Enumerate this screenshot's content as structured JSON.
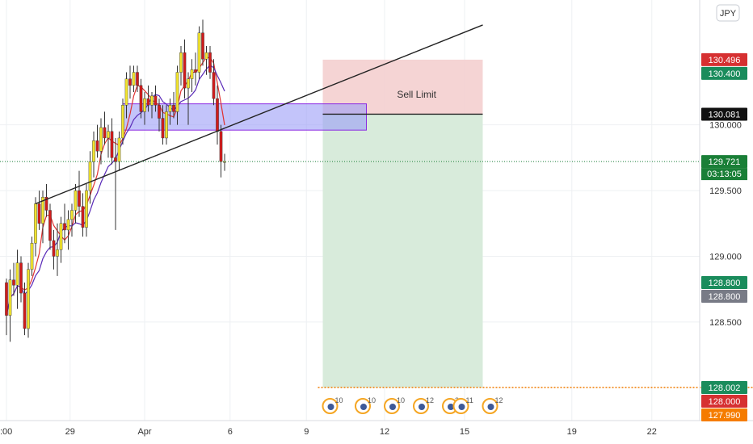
{
  "currency": "JPY",
  "countdown": "03:13:05",
  "trade_label": "Sell Limit",
  "colors": {
    "up": "#f2e42e",
    "down": "#d11c1c",
    "wick": "#333333",
    "sma_fast": "#e03232",
    "sma_slow": "#5a2bb8",
    "zone_fill": "#9b9cf6",
    "zone_stroke": "#8a2be2",
    "stop_zone": "#f3cccc",
    "target_zone": "#d6ead9",
    "trendline": "#222222",
    "current_line": "#1a7f37",
    "target_line": "#f07b00",
    "grid": "#eef0f3"
  },
  "chart_data": {
    "type": "candlestick",
    "title": "",
    "xlabel": "",
    "ylabel": "",
    "ylim": [
      127.75,
      130.95
    ],
    "x_ticks": [
      ":00",
      "29",
      "Apr",
      "6",
      "9",
      "12",
      "15",
      "19",
      "22"
    ],
    "y_ticks": [
      "130.000",
      "129.500",
      "129.000",
      "128.500"
    ],
    "grid": true,
    "candles": [
      [
        128.8,
        128.83,
        128.4,
        128.55
      ],
      [
        128.55,
        128.9,
        128.35,
        128.82
      ],
      [
        128.82,
        128.95,
        128.7,
        128.78
      ],
      [
        128.78,
        129.05,
        128.6,
        128.95
      ],
      [
        128.95,
        129.0,
        128.65,
        128.72
      ],
      [
        128.72,
        128.8,
        128.4,
        128.45
      ],
      [
        128.45,
        128.95,
        128.38,
        128.9
      ],
      [
        128.9,
        129.15,
        128.85,
        129.1
      ],
      [
        129.1,
        129.45,
        129.0,
        129.4
      ],
      [
        129.4,
        129.5,
        129.2,
        129.25
      ],
      [
        129.25,
        129.5,
        129.1,
        129.45
      ],
      [
        129.45,
        129.55,
        129.3,
        129.35
      ],
      [
        129.35,
        129.4,
        129.05,
        129.12
      ],
      [
        129.12,
        129.2,
        128.9,
        129.0
      ],
      [
        129.0,
        129.25,
        128.85,
        129.05
      ],
      [
        129.05,
        129.3,
        128.95,
        129.25
      ],
      [
        129.25,
        129.4,
        129.1,
        129.2
      ],
      [
        129.2,
        129.35,
        129.05,
        129.28
      ],
      [
        129.28,
        129.4,
        129.15,
        129.35
      ],
      [
        129.35,
        129.55,
        129.25,
        129.5
      ],
      [
        129.5,
        129.65,
        129.3,
        129.38
      ],
      [
        129.38,
        129.48,
        129.15,
        129.22
      ],
      [
        129.22,
        129.55,
        129.15,
        129.5
      ],
      [
        129.5,
        129.8,
        129.4,
        129.72
      ],
      [
        129.72,
        129.95,
        129.6,
        129.88
      ],
      [
        129.88,
        130.0,
        129.75,
        129.8
      ],
      [
        129.8,
        130.05,
        129.7,
        129.98
      ],
      [
        129.98,
        130.1,
        129.85,
        129.9
      ],
      [
        129.9,
        130.0,
        129.75,
        129.95
      ],
      [
        129.95,
        130.05,
        129.7,
        129.75
      ],
      [
        129.75,
        129.9,
        129.2,
        129.72
      ],
      [
        129.72,
        129.95,
        129.65,
        129.9
      ],
      [
        129.9,
        130.2,
        129.85,
        130.15
      ],
      [
        130.15,
        130.4,
        130.05,
        130.35
      ],
      [
        130.35,
        130.45,
        130.2,
        130.3
      ],
      [
        130.3,
        130.45,
        130.25,
        130.4
      ],
      [
        130.4,
        130.45,
        130.25,
        130.3
      ],
      [
        130.3,
        130.35,
        130.05,
        130.1
      ],
      [
        130.1,
        130.25,
        130.0,
        130.2
      ],
      [
        130.2,
        130.3,
        130.1,
        130.15
      ],
      [
        130.15,
        130.25,
        130.05,
        130.22
      ],
      [
        130.22,
        130.3,
        130.1,
        130.15
      ],
      [
        130.15,
        130.2,
        129.95,
        130.05
      ],
      [
        130.05,
        130.15,
        129.85,
        129.9
      ],
      [
        129.9,
        130.15,
        129.85,
        130.1
      ],
      [
        130.1,
        130.2,
        130.0,
        130.15
      ],
      [
        130.15,
        130.25,
        130.05,
        130.1
      ],
      [
        130.1,
        130.45,
        130.0,
        130.4
      ],
      [
        130.4,
        130.6,
        130.3,
        130.55
      ],
      [
        130.55,
        130.65,
        130.2,
        130.28
      ],
      [
        130.28,
        130.4,
        130.0,
        130.35
      ],
      [
        130.35,
        130.5,
        130.25,
        130.42
      ],
      [
        130.42,
        130.55,
        130.3,
        130.4
      ],
      [
        130.4,
        130.75,
        130.35,
        130.7
      ],
      [
        130.7,
        130.8,
        130.45,
        130.5
      ],
      [
        130.5,
        130.6,
        130.38,
        130.55
      ],
      [
        130.55,
        130.6,
        130.35,
        130.4
      ],
      [
        130.4,
        130.5,
        130.15,
        130.2
      ],
      [
        130.2,
        130.3,
        129.85,
        129.95
      ],
      [
        129.95,
        130.0,
        129.6,
        129.72
      ],
      [
        129.72,
        129.78,
        129.65,
        129.72
      ]
    ],
    "zone": {
      "x_start": 32,
      "x_end": 99,
      "y_top": 130.16,
      "y_bottom": 129.96
    },
    "trendline": {
      "x1": 8,
      "y1": 129.4,
      "x2": 131,
      "y2": 130.76
    },
    "position": {
      "x_start": 87,
      "x_end": 131,
      "entry": 130.081,
      "stop": 130.496,
      "target": 128.002
    },
    "current_price": 129.721,
    "price_labels": [
      {
        "value": 130.496,
        "text": "130.496",
        "bg": "#d63031"
      },
      {
        "value": 130.4,
        "text": "130.400",
        "bg": "#1a8c5c"
      },
      {
        "value": 130.081,
        "text": "130.081",
        "bg": "#111111"
      },
      {
        "value": 129.721,
        "text": "129.721",
        "bg": "#1a7f37"
      },
      {
        "value": 128.8,
        "text": "128.800",
        "bg": "#1a8c5c"
      },
      {
        "value": 128.8,
        "text": "128.800",
        "bg": "#787b86"
      },
      {
        "value": 128.002,
        "text": "128.002",
        "bg": "#1a8c5c"
      },
      {
        "value": 128.0,
        "text": "128.000",
        "bg": "#d63031"
      },
      {
        "value": 127.99,
        "text": "127.990",
        "bg": "#f57c00"
      }
    ],
    "events": [
      {
        "x": 89,
        "count": "10"
      },
      {
        "x": 98,
        "count": "10"
      },
      {
        "x": 106,
        "count": "10"
      },
      {
        "x": 114,
        "count": "12"
      },
      {
        "x": 122,
        "count": "2"
      },
      {
        "x": 125,
        "count": "11"
      },
      {
        "x": 133,
        "count": "12"
      }
    ]
  }
}
